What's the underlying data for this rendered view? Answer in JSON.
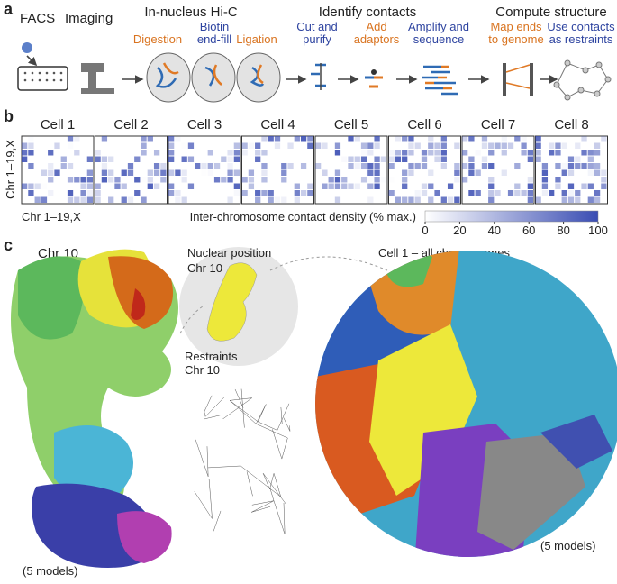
{
  "panel_a": {
    "label": "a",
    "facs": "FACS",
    "imaging": "Imaging",
    "hic": {
      "title": "In-nucleus Hi-C",
      "steps": [
        [
          "Digestion"
        ],
        [
          "Biotin",
          "end-fill"
        ],
        [
          "Ligation"
        ]
      ]
    },
    "identify": {
      "title": "Identify contacts",
      "steps": [
        [
          "Cut and",
          "purify"
        ],
        [
          "Add",
          "adaptors"
        ],
        [
          "Amplify and",
          "sequence"
        ]
      ]
    },
    "compute": {
      "title": "Compute structure",
      "steps": [
        [
          "Map ends",
          "to genome"
        ],
        [
          "Use contacts",
          "as restraints"
        ]
      ]
    }
  },
  "panel_b": {
    "label": "b",
    "cells": [
      "Cell 1",
      "Cell 2",
      "Cell 3",
      "Cell 4",
      "Cell 5",
      "Cell 6",
      "Cell 7",
      "Cell 8"
    ],
    "axis_y": "Chr 1–19,X",
    "axis_x": "Chr 1–19,X",
    "colorbar": {
      "title": "Inter-chromosome contact density (% max.)",
      "range": [
        0,
        100
      ],
      "ticks": [
        0,
        20,
        40,
        60,
        80,
        100
      ]
    }
  },
  "panel_c": {
    "label": "c",
    "chr10": "Chr 10",
    "nuclear_position": [
      "Nuclear position",
      "Chr 10"
    ],
    "restraints": [
      "Restraints",
      "Chr 10"
    ],
    "cell1": "Cell 1 – all chromosomes",
    "models_left": "(5 models)",
    "models_right": "(5 models)"
  }
}
